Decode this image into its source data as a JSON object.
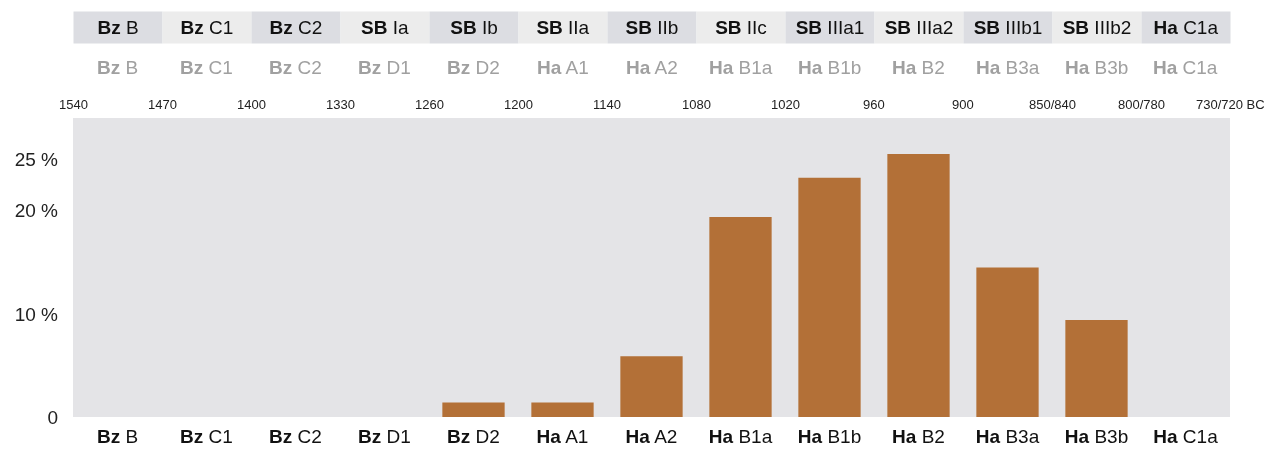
{
  "chart_data": {
    "type": "bar",
    "categories": [
      "Bz B",
      "Bz C1",
      "Bz C2",
      "Bz D1",
      "Bz D2",
      "Ha A1",
      "Ha A2",
      "Ha B1a",
      "Ha B1b",
      "Ha B2",
      "Ha B3a",
      "Ha B3b",
      "Ha C1a"
    ],
    "values": [
      0,
      0,
      0,
      0,
      1.4,
      1.4,
      5.9,
      19.4,
      23.2,
      25.5,
      14.5,
      9.4,
      0
    ],
    "color": "#b37037",
    "ylim": [
      0,
      29
    ],
    "yticks": [
      0,
      {
        "value": 10,
        "label": "10 %"
      },
      {
        "value": 20,
        "label": "20 %"
      },
      {
        "value": 25,
        "label": "25 %"
      }
    ],
    "grid": false,
    "annotations": [
      "1540",
      "1470",
      "1400",
      "1330",
      "1260",
      "1200",
      "1140",
      "1080",
      "1020",
      "960",
      "900",
      "850/840",
      "800/780",
      "730/720 BC",
      "Bz B",
      "Bz C1",
      "Bz C2",
      "SB Ia",
      "SB Ib",
      "SB IIa",
      "SB IIb",
      "SB IIc",
      "SB IIIa1",
      "SB IIIa2",
      "SB IIIb1",
      "SB IIIb2",
      "Ha C1a",
      "Bz B",
      "Bz C1",
      "Bz C2",
      "Bz D1",
      "Bz D2",
      "Ha A1",
      "Ha A2",
      "Ha B1a",
      "Ha B1b",
      "Ha B2",
      "Ha B3a",
      "Ha B3b",
      "Ha C1a"
    ]
  }
}
